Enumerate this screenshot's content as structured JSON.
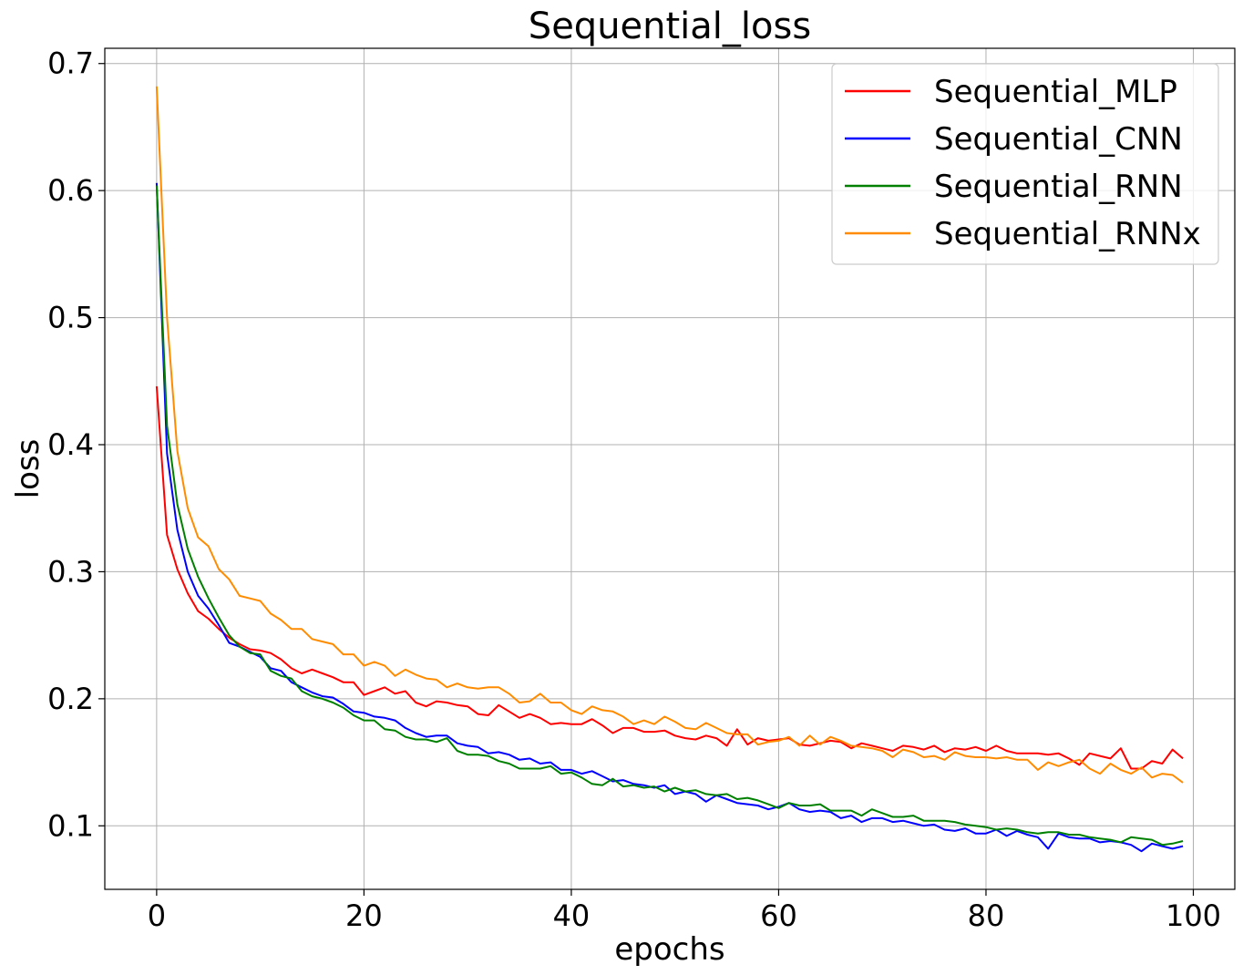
{
  "chart_data": {
    "type": "line",
    "title": "Sequential_loss",
    "xlabel": "epochs",
    "ylabel": "loss",
    "xlim": [
      -5,
      104
    ],
    "ylim": [
      0.05,
      0.712
    ],
    "xticks": [
      0,
      20,
      40,
      60,
      80,
      100
    ],
    "yticks": [
      0.1,
      0.2,
      0.3,
      0.4,
      0.5,
      0.6,
      0.7
    ],
    "xtick_labels": [
      "0",
      "20",
      "40",
      "60",
      "80",
      "100"
    ],
    "ytick_labels": [
      "0.1",
      "0.2",
      "0.3",
      "0.4",
      "0.5",
      "0.6",
      "0.7"
    ],
    "grid": true,
    "legend_position": "top-right",
    "x_start": 0,
    "series": [
      {
        "name": "Sequential_MLP",
        "color": "#ff0000",
        "values": [
          0.446,
          0.329,
          0.302,
          0.283,
          0.269,
          0.263,
          0.255,
          0.248,
          0.243,
          0.239,
          0.238,
          0.236,
          0.231,
          0.224,
          0.22,
          0.223,
          0.22,
          0.217,
          0.213,
          0.213,
          0.203,
          0.206,
          0.209,
          0.204,
          0.206,
          0.197,
          0.194,
          0.198,
          0.197,
          0.195,
          0.194,
          0.188,
          0.187,
          0.195,
          0.19,
          0.185,
          0.188,
          0.185,
          0.18,
          0.181,
          0.18,
          0.18,
          0.184,
          0.179,
          0.173,
          0.177,
          0.177,
          0.174,
          0.174,
          0.175,
          0.171,
          0.169,
          0.168,
          0.171,
          0.169,
          0.163,
          0.176,
          0.164,
          0.169,
          0.167,
          0.168,
          0.169,
          0.164,
          0.163,
          0.165,
          0.167,
          0.166,
          0.161,
          0.165,
          0.163,
          0.161,
          0.159,
          0.163,
          0.162,
          0.16,
          0.163,
          0.158,
          0.161,
          0.16,
          0.162,
          0.159,
          0.163,
          0.159,
          0.157,
          0.157,
          0.157,
          0.156,
          0.157,
          0.153,
          0.148,
          0.157,
          0.155,
          0.153,
          0.161,
          0.145,
          0.145,
          0.151,
          0.149,
          0.16,
          0.153
        ]
      },
      {
        "name": "Sequential_CNN",
        "color": "#0000ff",
        "values": [
          0.606,
          0.393,
          0.333,
          0.3,
          0.281,
          0.271,
          0.258,
          0.244,
          0.241,
          0.237,
          0.233,
          0.224,
          0.222,
          0.213,
          0.209,
          0.205,
          0.202,
          0.201,
          0.196,
          0.19,
          0.189,
          0.186,
          0.185,
          0.183,
          0.177,
          0.173,
          0.17,
          0.171,
          0.171,
          0.165,
          0.163,
          0.162,
          0.157,
          0.158,
          0.156,
          0.152,
          0.153,
          0.149,
          0.15,
          0.144,
          0.144,
          0.141,
          0.143,
          0.139,
          0.135,
          0.136,
          0.133,
          0.132,
          0.13,
          0.132,
          0.125,
          0.127,
          0.125,
          0.119,
          0.124,
          0.121,
          0.118,
          0.117,
          0.116,
          0.113,
          0.115,
          0.118,
          0.113,
          0.111,
          0.112,
          0.111,
          0.106,
          0.108,
          0.103,
          0.106,
          0.106,
          0.103,
          0.104,
          0.102,
          0.1,
          0.101,
          0.097,
          0.096,
          0.098,
          0.094,
          0.094,
          0.097,
          0.092,
          0.096,
          0.093,
          0.091,
          0.082,
          0.094,
          0.091,
          0.09,
          0.09,
          0.087,
          0.088,
          0.087,
          0.085,
          0.08,
          0.086,
          0.084,
          0.082,
          0.084
        ]
      },
      {
        "name": "Sequential_RNN",
        "color": "#008000",
        "values": [
          0.604,
          0.415,
          0.353,
          0.318,
          0.296,
          0.279,
          0.264,
          0.25,
          0.241,
          0.236,
          0.235,
          0.222,
          0.218,
          0.216,
          0.206,
          0.202,
          0.2,
          0.197,
          0.193,
          0.187,
          0.183,
          0.183,
          0.176,
          0.175,
          0.17,
          0.168,
          0.168,
          0.166,
          0.169,
          0.159,
          0.156,
          0.156,
          0.155,
          0.151,
          0.149,
          0.145,
          0.145,
          0.145,
          0.147,
          0.141,
          0.142,
          0.138,
          0.133,
          0.132,
          0.137,
          0.131,
          0.132,
          0.13,
          0.131,
          0.127,
          0.13,
          0.127,
          0.128,
          0.125,
          0.124,
          0.125,
          0.121,
          0.122,
          0.12,
          0.117,
          0.114,
          0.118,
          0.116,
          0.116,
          0.117,
          0.112,
          0.112,
          0.112,
          0.108,
          0.113,
          0.11,
          0.107,
          0.107,
          0.108,
          0.104,
          0.104,
          0.104,
          0.103,
          0.101,
          0.1,
          0.099,
          0.097,
          0.098,
          0.097,
          0.095,
          0.094,
          0.095,
          0.095,
          0.093,
          0.093,
          0.091,
          0.09,
          0.089,
          0.087,
          0.091,
          0.09,
          0.089,
          0.085,
          0.086,
          0.088
        ]
      },
      {
        "name": "Sequential_RNNx",
        "color": "#ff8c00",
        "values": [
          0.682,
          0.5,
          0.395,
          0.35,
          0.327,
          0.32,
          0.302,
          0.294,
          0.281,
          0.279,
          0.277,
          0.267,
          0.262,
          0.255,
          0.255,
          0.247,
          0.245,
          0.243,
          0.235,
          0.235,
          0.226,
          0.229,
          0.226,
          0.218,
          0.223,
          0.219,
          0.216,
          0.215,
          0.209,
          0.212,
          0.209,
          0.208,
          0.209,
          0.209,
          0.204,
          0.197,
          0.198,
          0.204,
          0.197,
          0.197,
          0.191,
          0.188,
          0.194,
          0.191,
          0.19,
          0.186,
          0.18,
          0.183,
          0.18,
          0.186,
          0.182,
          0.177,
          0.176,
          0.181,
          0.177,
          0.173,
          0.172,
          0.172,
          0.164,
          0.166,
          0.167,
          0.17,
          0.163,
          0.171,
          0.164,
          0.17,
          0.167,
          0.163,
          0.162,
          0.161,
          0.159,
          0.154,
          0.16,
          0.158,
          0.154,
          0.155,
          0.152,
          0.158,
          0.155,
          0.154,
          0.154,
          0.153,
          0.154,
          0.152,
          0.152,
          0.144,
          0.15,
          0.147,
          0.15,
          0.152,
          0.145,
          0.141,
          0.149,
          0.144,
          0.141,
          0.146,
          0.138,
          0.141,
          0.14,
          0.134
        ]
      }
    ]
  }
}
